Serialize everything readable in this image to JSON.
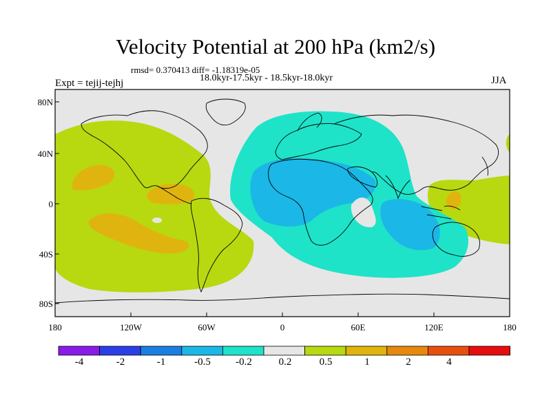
{
  "title": "Velocity Potential at 200 hPa (km2/s)",
  "stats": "rmsd= 0.370413 diff= -1.18319e-05",
  "period": "18.0kyr-17.5kyr - 18.5kyr-18.0kyr",
  "experiment": "Expt = tejij-tejhj",
  "season": "JJA",
  "map": {
    "lon_range": [
      -180,
      180
    ],
    "lat_range": [
      -90,
      90
    ],
    "y_ticks": [
      "80N",
      "40N",
      "0",
      "40S",
      "80S"
    ],
    "x_ticks": [
      "180",
      "120W",
      "60W",
      "0",
      "60E",
      "120E",
      "180"
    ],
    "background_color": "#e6e6e6",
    "coast_color": "#000000"
  },
  "colorbar": {
    "labels": [
      "-4",
      "-2",
      "-1",
      "-0.5",
      "-0.2",
      "0.2",
      "0.5",
      "1",
      "2",
      "4"
    ],
    "colors": [
      "#8a1ce8",
      "#2b3fe6",
      "#1a7fe0",
      "#1bb7e6",
      "#1ee3c8",
      "#e6e6e6",
      "#b8d810",
      "#e0b40e",
      "#e6880e",
      "#e6500e",
      "#e60e0e"
    ]
  }
}
